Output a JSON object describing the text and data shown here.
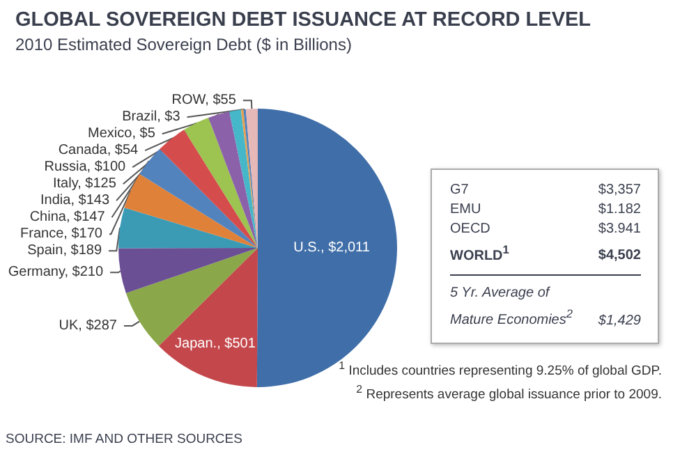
{
  "chart_data": [
    {
      "type": "pie",
      "title": "GLOBAL SOVEREIGN DEBT ISSUANCE AT RECORD LEVEL",
      "subtitle": "2010 Estimated Sovereign Debt ($ in Billions)",
      "categories": [
        "U.S.",
        "Japan.",
        "UK",
        "Germany",
        "Spain",
        "France",
        "China",
        "India",
        "Italy",
        "Russia",
        "Canada",
        "Mexico",
        "Brazil",
        "ROW"
      ],
      "values": [
        2011,
        501,
        287,
        210,
        189,
        170,
        147,
        143,
        125,
        100,
        54,
        5,
        3,
        55
      ],
      "value_labels": [
        "$2,011",
        "$501",
        "$287",
        "$210",
        "$189",
        "$170",
        "$147",
        "$143",
        "$125",
        "$100",
        "$54",
        "$5",
        "$3",
        "$55"
      ],
      "colors": [
        "#3f6ea8",
        "#c4474b",
        "#8aa84a",
        "#6a4f94",
        "#3b9bb5",
        "#e0813a",
        "#5283bd",
        "#d54c4c",
        "#9dc350",
        "#8b62aa",
        "#46b6c9",
        "#e8a050",
        "#4f81bd",
        "#e7b8b8"
      ],
      "annotations": [
        "$^{1}$ Includes countries representing 9.25% of global GDP.",
        "$^{2}$ Represents average global issuance prior to 2009.",
        "SOURCE: IMF AND OTHER SOURCES"
      ]
    },
    {
      "type": "other",
      "annotations": [
        "G7",
        "$3,357",
        "EMU",
        "$1.182",
        "OECD",
        "$3.941",
        "WORLD$^{1}$",
        "$4,502",
        "5 Yr. Average of Mature Economies$^{2}$",
        "$1,429"
      ]
    }
  ]
}
